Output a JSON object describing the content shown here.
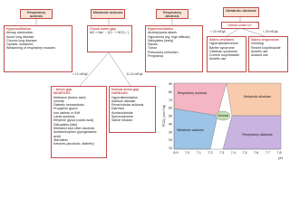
{
  "headers": [
    "Respiratory acidosis",
    "Metabolic acidosis",
    "Respiratory alkalosis",
    "Metabolic alkalosis"
  ],
  "hypoventilation": {
    "title": "Hypoventilation",
    "items": [
      "Airway obstruction",
      "Acute lung disease",
      "Chronic lung disease",
      "Opioids, sedatives",
      "Weakening of respiratory muscles"
    ]
  },
  "anion_gap_check": {
    "title": "Check anion gap",
    "formula": "AG = Na⁺ − (Cl⁻ + HCO₃⁻)"
  },
  "hyperventilation": {
    "title": "Hyperventilation",
    "items": [
      "Anxiety/panic attack",
      "Hypoxemia (eg, high altitude)",
      "Salicylates (early)",
      "Sepsis",
      "Tumor",
      "Pulmonary embolism",
      "Pregnancy"
    ]
  },
  "urine_cl": {
    "title": "Check urine Cl⁻",
    "left": "> 20 mEq/L",
    "right": "< 20 mEq/L"
  },
  "saline_resistant": {
    "title": "Saline-resistant",
    "items": [
      "Hyperaldosteronism",
      "Bartter syndrome",
      "Gitelman syndrome",
      "Current loop/thiazide diuretic use"
    ]
  },
  "saline_responsive": {
    "title": "Saline-responsive",
    "items": [
      "Vomiting",
      "Recent loop/thiazide diuretic use",
      "Antacid use"
    ]
  },
  "ag_branches": [
    "> 12 mEq/L",
    "8–12 mEq/L"
  ],
  "high_ag": {
    "title": "↑ Anion gap",
    "subtitle": "MUDPILES",
    "items": [
      "Methanol (formic acid)",
      "Uremia",
      "Diabetic ketoacidosis",
      "Propylene glycol",
      "Iron tablets or INH",
      "Lactic acidosis",
      "Ethylene glycol (oxalic acid)",
      "Salicylates (late)",
      "Methanol and other alcohols",
      "Acetaminophen (pyroglutamic acid)",
      "Starvation",
      "Ketones (alcoholic, diabetic)"
    ]
  },
  "normal_ag": {
    "title": "Normal anion gap",
    "subtitle": "HARDASS",
    "items": [
      "Hyperalimentation",
      "Addison disease",
      "Renal tubular acidosis",
      "Diarrhea",
      "Acetazolamide",
      "Spironolactone",
      "Saline infusion"
    ]
  },
  "graph": {
    "regions": [
      "Respiratory acidosis",
      "Metabolic acidosis",
      "Normal",
      "Metabolic alkalosis",
      "Respiratory alkalosis"
    ],
    "ylabel": "PCO₂ (mm Hg)",
    "xlabel": "pH",
    "yticks": [
      "90",
      "80",
      "70",
      "60",
      "50",
      "40",
      "30",
      "20",
      "10"
    ],
    "xticks": [
      "6.9",
      "7.0",
      "7.1",
      "7.2",
      "7.3",
      "7.4",
      "7.5",
      "7.6",
      "7.7",
      "7.8"
    ]
  }
}
